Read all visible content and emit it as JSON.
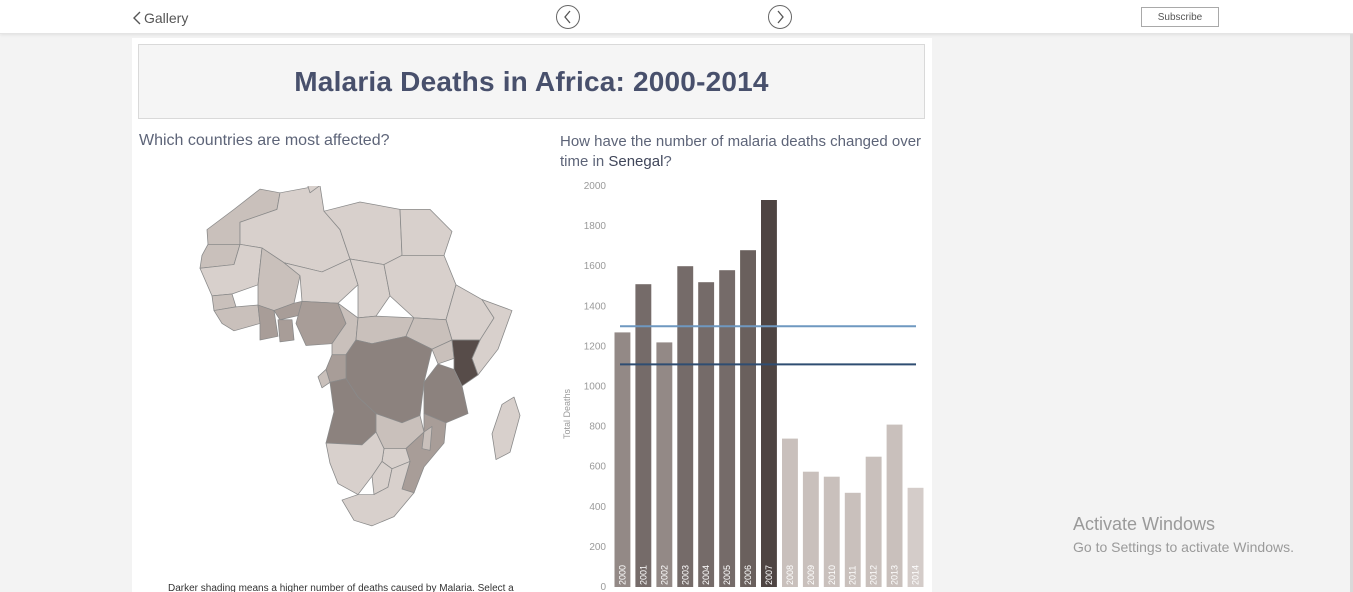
{
  "topbar": {
    "back_label": "Gallery",
    "subscribe_label": "Subscribe"
  },
  "dashboard": {
    "title": "Malaria Deaths in Africa: 2000-2014",
    "left_question": "Which countries are most affected?",
    "right_question_prefix": "How have the number of malaria deaths changed over time in ",
    "right_question_country": "Senegal",
    "right_question_suffix": "?",
    "footnote": "Darker shading means a higher number of deaths caused by Malaria. Select a"
  },
  "map": {
    "colors": {
      "lightest": "#d8d0cc",
      "light": "#c9c0bb",
      "mid": "#a89d98",
      "dark": "#8c827e",
      "darkest": "#574c49",
      "border": "#8a8a8a"
    }
  },
  "chart_data": {
    "type": "bar",
    "title": "",
    "ylabel": "Total Deaths",
    "xlabel": "",
    "categories": [
      "2000",
      "2001",
      "2002",
      "2003",
      "2004",
      "2005",
      "2006",
      "2007",
      "2008",
      "2009",
      "2010",
      "2011",
      "2012",
      "2013",
      "2014"
    ],
    "values": [
      1270,
      1510,
      1220,
      1600,
      1520,
      1580,
      1680,
      1930,
      740,
      575,
      550,
      470,
      650,
      810,
      495
    ],
    "bar_colors": [
      "#938986",
      "#756b69",
      "#938986",
      "#756b69",
      "#756b69",
      "#756b69",
      "#6a605d",
      "#4e4442",
      "#c9c0bc",
      "#c9c0bc",
      "#c9c0bc",
      "#c9c0bc",
      "#c9c0bc",
      "#c9c0bc",
      "#d4ccc9"
    ],
    "ylim": [
      0,
      2000
    ],
    "yticks": [
      0,
      200,
      400,
      600,
      800,
      1000,
      1200,
      1400,
      1600,
      1800,
      2000
    ],
    "ytick_labels": [
      "0",
      "200",
      "400",
      "600",
      "800",
      "1000",
      "1200",
      "1400",
      "1600",
      "1800",
      "2000"
    ],
    "reference_lines": [
      {
        "value": 1300,
        "color": "#6f98c0"
      },
      {
        "value": 1110,
        "color": "#2f4d72"
      }
    ],
    "grid": false
  },
  "watermark": {
    "line1": "Activate Windows",
    "line2": "Go to Settings to activate Windows."
  }
}
